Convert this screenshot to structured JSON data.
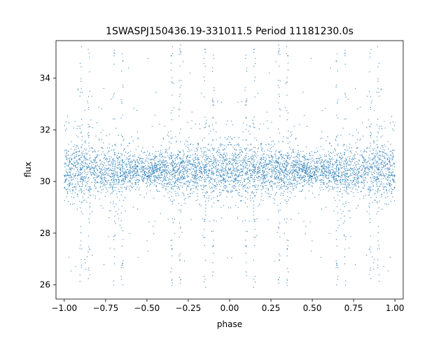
{
  "chart_data": {
    "type": "scatter",
    "title": "1SWASPJ150436.19-331011.5 Period 11181230.0s",
    "xlabel": "phase",
    "ylabel": "flux",
    "xlim": [
      -1.05,
      1.05
    ],
    "ylim": [
      25.45,
      35.45
    ],
    "xticks": [
      -1.0,
      -0.75,
      -0.5,
      -0.25,
      0.0,
      0.25,
      0.5,
      0.75,
      1.0
    ],
    "xtick_labels": [
      "−1.00",
      "−0.75",
      "−0.50",
      "−0.25",
      "0.00",
      "0.25",
      "0.50",
      "0.75",
      "1.00"
    ],
    "yticks": [
      26,
      28,
      30,
      32,
      34
    ],
    "ytick_labels": [
      "26",
      "28",
      "30",
      "32",
      "34"
    ],
    "grid": false,
    "legend": "none",
    "marker_color": "#1f77b4",
    "series": [
      {
        "phase_range": [
          -1.0,
          1.0
        ],
        "baseline_flux": 30.4,
        "core_band": [
          28.8,
          32.2
        ],
        "outlier_range": [
          25.9,
          35.3
        ],
        "note_points": "dense phase-folded light curve; points sampled symmetrically about phase 0",
        "dense_columns_phase": [
          -0.3,
          0.7,
          -0.9,
          0.1,
          -0.15,
          0.85,
          -0.65,
          0.35
        ]
      }
    ]
  }
}
